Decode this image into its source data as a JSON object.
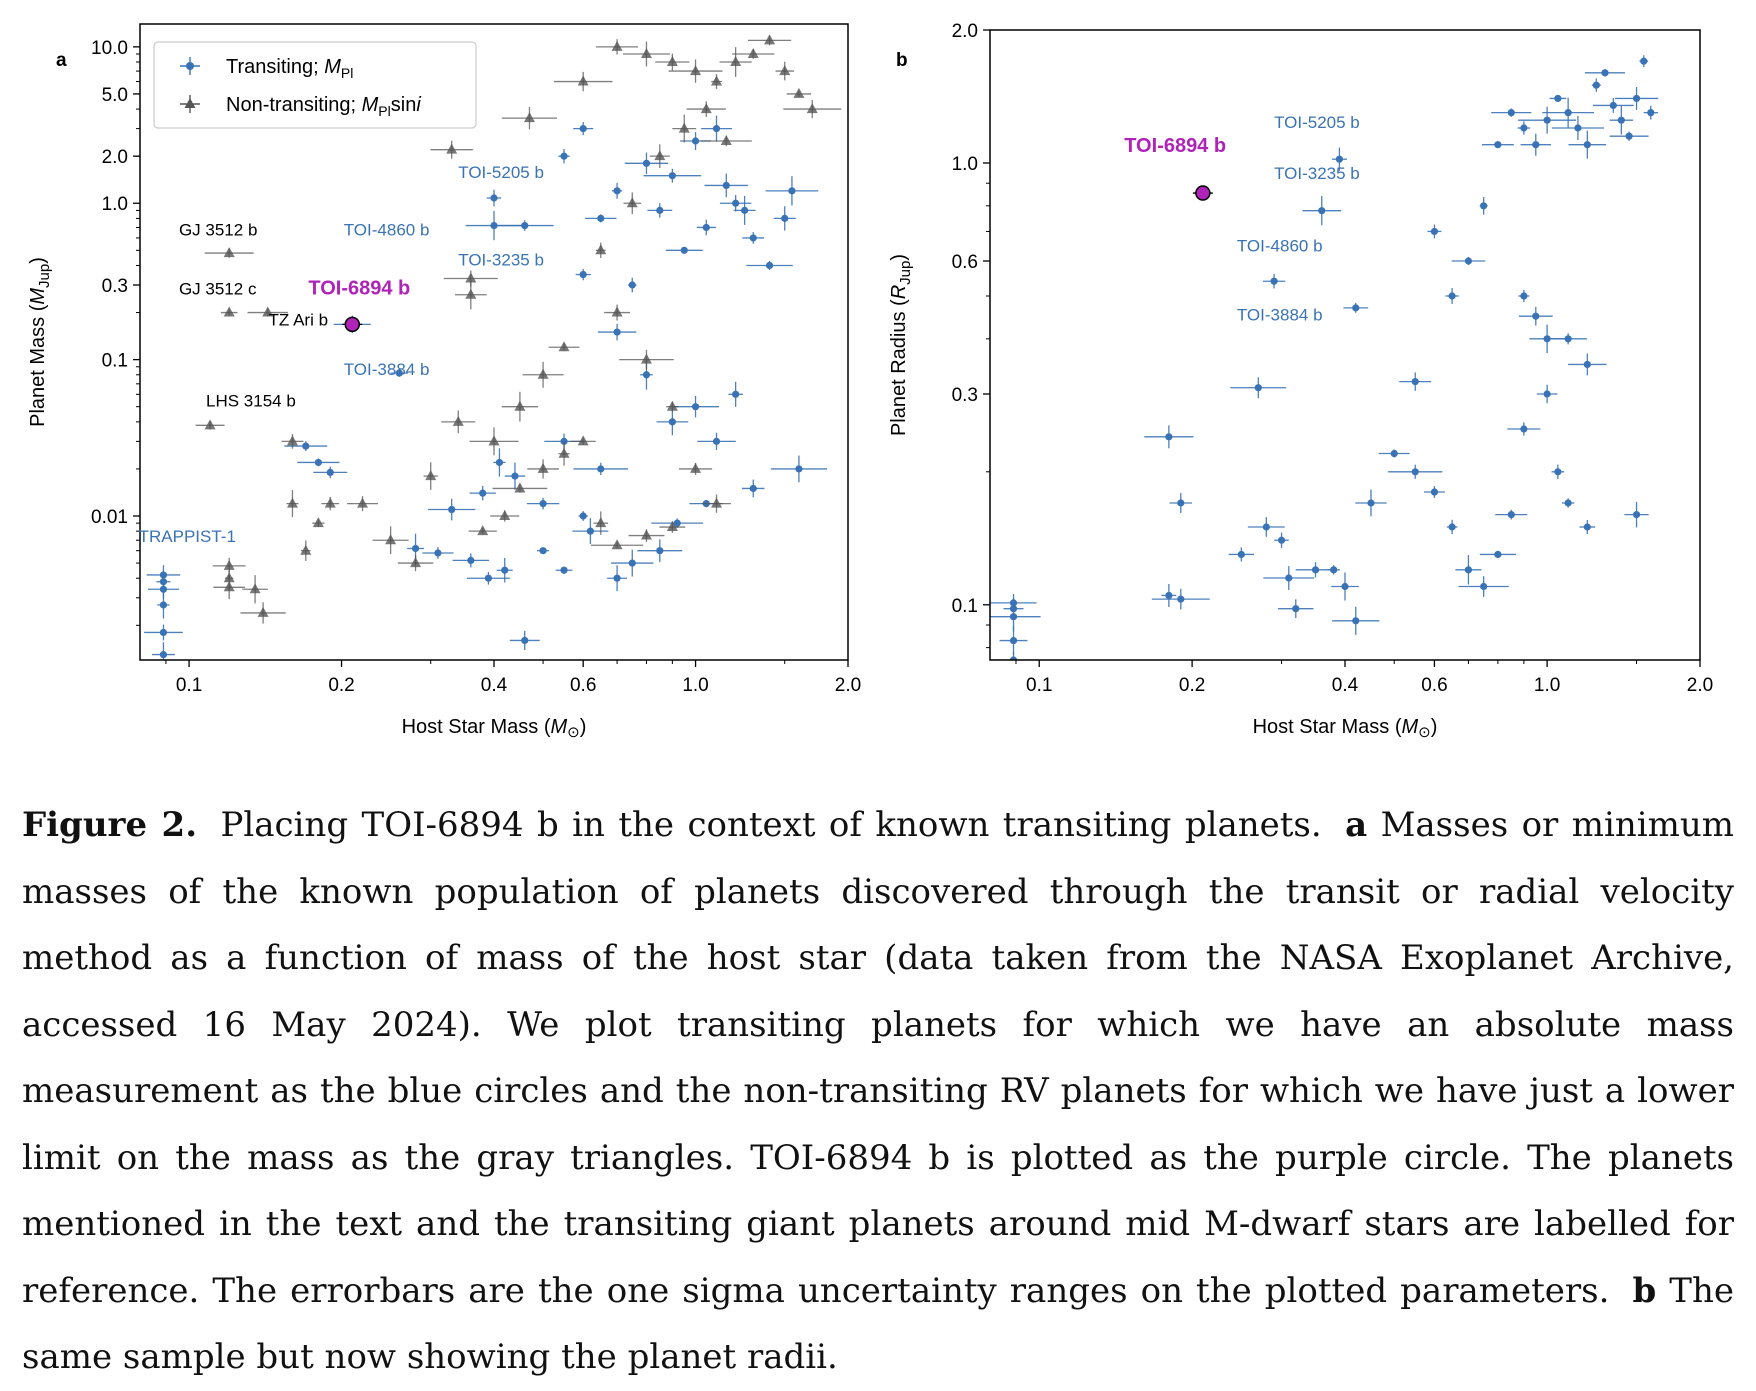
{
  "colors": {
    "transiting": "#3a73b5",
    "non_transiting": "#555555",
    "highlight": "#b023b8",
    "axis": "#000000"
  },
  "caption": {
    "label": "Figure 2.",
    "intro": "Placing TOI-6894 b in the context of known transiting planets.",
    "panel_a_marker": "a",
    "panel_a_text": "Masses or minimum masses of the known population of planets discovered through the transit or radial velocity method as a function of mass of the host star (data taken from the NASA Exoplanet Archive, accessed 16 May 2024). We plot transiting planets for which we have an absolute mass measurement as the blue circles and the non-transiting RV planets for which we have just a lower limit on the mass as the gray triangles. TOI-6894 b is plotted as the purple circle. The planets mentioned in the text and the transiting giant planets around mid M-dwarf stars are labelled for reference. The errorbars are the one sigma uncertainty ranges on the plotted parameters.",
    "panel_b_marker": "b",
    "panel_b_text": "The same sample but now showing the planet radii."
  },
  "chart_data": [
    {
      "type": "scatter",
      "panel": "a",
      "xlabel": "Host Star Mass (M⊙)",
      "ylabel": "Planet Mass (MJup)",
      "xscale": "log",
      "yscale": "log",
      "xlim": [
        0.08,
        2.0
      ],
      "ylim": [
        0.0012,
        14
      ],
      "x_ticks": [
        0.1,
        0.2,
        0.4,
        0.6,
        1.0,
        2.0
      ],
      "x_tick_labels": [
        "0.1",
        "0.2",
        "0.4",
        "0.6",
        "1.0",
        "2.0"
      ],
      "y_ticks": [
        0.01,
        0.1,
        0.3,
        1.0,
        2.0,
        5.0,
        10.0
      ],
      "y_tick_labels": [
        "0.01",
        "0.1",
        "0.3",
        "1.0",
        "2.0",
        "5.0",
        "10.0"
      ],
      "grid": false,
      "legend": {
        "position": "top-left",
        "entries": [
          {
            "series": "transiting",
            "label": "Transiting; ",
            "math": "M",
            "sub": "Pl",
            "suffix": ""
          },
          {
            "series": "non_transiting",
            "label": "Non-transiting; ",
            "math": "M",
            "sub": "Pl",
            "suffix": "sin i"
          }
        ]
      },
      "highlight": {
        "name": "TOI-6894 b",
        "x": 0.21,
        "y": 0.168
      },
      "annotations": [
        {
          "text": "GJ 3512 b",
          "x": 0.0955,
          "y": 0.62,
          "color": "black",
          "size": 17
        },
        {
          "text": "GJ 3512 c",
          "x": 0.0955,
          "y": 0.26,
          "color": "black",
          "size": 17
        },
        {
          "text": "TZ Ari b",
          "x": 0.1435,
          "y": 0.165,
          "color": "black",
          "size": 17
        },
        {
          "text": "LHS 3154 b",
          "x": 0.108,
          "y": 0.05,
          "color": "black",
          "size": 17
        },
        {
          "text": "TOI-6894 b",
          "x": 0.172,
          "y": 0.26,
          "color": "highlight",
          "size": 20,
          "bold": true
        },
        {
          "text": "TOI-3884 b",
          "x": 0.202,
          "y": 0.08,
          "color": "blue",
          "size": 17
        },
        {
          "text": "TOI-4860 b",
          "x": 0.202,
          "y": 0.62,
          "color": "blue",
          "size": 17
        },
        {
          "text": "TOI-5205 b",
          "x": 0.34,
          "y": 1.45,
          "color": "blue",
          "size": 17
        },
        {
          "text": "TOI-3235 b",
          "x": 0.34,
          "y": 0.4,
          "color": "blue",
          "size": 17
        },
        {
          "text": "TRAPPIST-1",
          "x": 0.0795,
          "y": 0.0068,
          "color": "blue",
          "size": 17
        }
      ],
      "series": [
        {
          "name": "Transiting; MPl",
          "marker": "circle",
          "points": [
            [
              0.089,
              0.0042
            ],
            [
              0.089,
              0.0038
            ],
            [
              0.089,
              0.0034
            ],
            [
              0.089,
              0.0027
            ],
            [
              0.089,
              0.0018
            ],
            [
              0.089,
              0.0013
            ],
            [
              0.18,
              0.022
            ],
            [
              0.19,
              0.019
            ],
            [
              0.17,
              0.028
            ],
            [
              0.21,
              0.168
            ],
            [
              0.26,
              0.082
            ],
            [
              0.4,
              0.72
            ],
            [
              0.4,
              1.08
            ],
            [
              0.46,
              0.72
            ],
            [
              0.46,
              0.0016
            ],
            [
              0.39,
              0.004
            ],
            [
              0.28,
              0.0062
            ],
            [
              0.31,
              0.0058
            ],
            [
              0.36,
              0.0052
            ],
            [
              0.42,
              0.0045
            ],
            [
              0.38,
              0.014
            ],
            [
              0.41,
              0.022
            ],
            [
              0.44,
              0.018
            ],
            [
              0.5,
              0.012
            ],
            [
              0.55,
              0.03
            ],
            [
              0.33,
              0.011
            ],
            [
              0.6,
              0.35
            ],
            [
              0.65,
              0.8
            ],
            [
              0.7,
              1.2
            ],
            [
              0.8,
              1.8
            ],
            [
              0.9,
              1.5
            ],
            [
              1.0,
              2.5
            ],
            [
              1.1,
              3.0
            ],
            [
              1.2,
              1.0
            ],
            [
              1.3,
              0.6
            ],
            [
              1.4,
              0.4
            ],
            [
              1.5,
              0.8
            ],
            [
              1.55,
              1.2
            ],
            [
              1.6,
              0.02
            ],
            [
              1.0,
              0.05
            ],
            [
              0.95,
              0.5
            ],
            [
              0.85,
              0.9
            ],
            [
              1.05,
              0.7
            ],
            [
              1.15,
              1.3
            ],
            [
              1.25,
              0.9
            ],
            [
              0.75,
              0.3
            ],
            [
              0.7,
              0.15
            ],
            [
              0.8,
              0.08
            ],
            [
              0.9,
              0.04
            ],
            [
              1.1,
              0.03
            ],
            [
              1.2,
              0.06
            ],
            [
              0.65,
              0.02
            ],
            [
              0.6,
              0.01
            ],
            [
              0.85,
              0.006
            ],
            [
              0.75,
              0.005
            ],
            [
              0.7,
              0.004
            ],
            [
              0.55,
              0.0045
            ],
            [
              0.5,
              0.006
            ],
            [
              0.62,
              0.008
            ],
            [
              0.92,
              0.009
            ],
            [
              1.05,
              0.012
            ],
            [
              1.3,
              0.015
            ],
            [
              0.55,
              2.0
            ],
            [
              0.6,
              3.0
            ]
          ]
        },
        {
          "name": "Non-transiting; MPl sin i",
          "marker": "triangle",
          "points": [
            [
              0.12,
              0.48
            ],
            [
              0.12,
              0.2
            ],
            [
              0.143,
              0.2
            ],
            [
              0.11,
              0.038
            ],
            [
              0.12,
              0.0048
            ],
            [
              0.12,
              0.004
            ],
            [
              0.12,
              0.0035
            ],
            [
              0.135,
              0.0034
            ],
            [
              0.14,
              0.0024
            ],
            [
              0.16,
              0.03
            ],
            [
              0.16,
              0.012
            ],
            [
              0.18,
              0.009
            ],
            [
              0.19,
              0.012
            ],
            [
              0.17,
              0.006
            ],
            [
              0.22,
              0.012
            ],
            [
              0.25,
              0.007
            ],
            [
              0.28,
              0.005
            ],
            [
              0.3,
              0.018
            ],
            [
              0.33,
              2.2
            ],
            [
              0.47,
              3.5
            ],
            [
              0.36,
              0.26
            ],
            [
              0.36,
              0.33
            ],
            [
              0.34,
              0.04
            ],
            [
              0.4,
              0.03
            ],
            [
              0.45,
              0.05
            ],
            [
              0.5,
              0.08
            ],
            [
              0.55,
              0.12
            ],
            [
              0.6,
              6
            ],
            [
              0.7,
              10
            ],
            [
              0.8,
              9
            ],
            [
              0.9,
              8
            ],
            [
              1.0,
              7
            ],
            [
              1.1,
              6
            ],
            [
              1.2,
              8
            ],
            [
              1.3,
              9
            ],
            [
              1.4,
              11
            ],
            [
              1.5,
              7
            ],
            [
              1.6,
              5
            ],
            [
              1.7,
              4
            ],
            [
              0.65,
              0.5
            ],
            [
              0.75,
              1.0
            ],
            [
              0.85,
              2.0
            ],
            [
              0.95,
              3.0
            ],
            [
              1.05,
              4.0
            ],
            [
              1.15,
              2.5
            ],
            [
              0.7,
              0.2
            ],
            [
              0.8,
              0.1
            ],
            [
              0.9,
              0.05
            ],
            [
              1.0,
              0.02
            ],
            [
              1.1,
              0.012
            ],
            [
              0.6,
              0.03
            ],
            [
              0.55,
              0.025
            ],
            [
              0.5,
              0.02
            ],
            [
              0.45,
              0.015
            ],
            [
              0.42,
              0.01
            ],
            [
              0.38,
              0.008
            ],
            [
              0.65,
              0.009
            ],
            [
              0.7,
              0.0065
            ],
            [
              0.8,
              0.0075
            ],
            [
              0.9,
              0.0085
            ]
          ]
        }
      ]
    },
    {
      "type": "scatter",
      "panel": "b",
      "xlabel": "Host Star Mass (M⊙)",
      "ylabel": "Planet Radius (RJup)",
      "xscale": "log",
      "yscale": "log",
      "xlim": [
        0.08,
        2.0
      ],
      "ylim": [
        0.075,
        2.0
      ],
      "x_ticks": [
        0.1,
        0.2,
        0.4,
        0.6,
        1.0,
        2.0
      ],
      "x_tick_labels": [
        "0.1",
        "0.2",
        "0.4",
        "0.6",
        "1.0",
        "2.0"
      ],
      "y_ticks": [
        0.1,
        0.3,
        0.6,
        1.0,
        2.0
      ],
      "y_tick_labels": [
        "0.1",
        "0.3",
        "0.6",
        "1.0",
        "2.0"
      ],
      "grid": false,
      "highlight": {
        "name": "TOI-6894 b",
        "x": 0.21,
        "y": 0.855
      },
      "annotations": [
        {
          "text": "TOI-6894 b",
          "x": 0.147,
          "y": 1.06,
          "color": "highlight",
          "size": 20,
          "bold": true
        },
        {
          "text": "TOI-5205 b",
          "x": 0.29,
          "y": 1.2,
          "color": "blue",
          "size": 17
        },
        {
          "text": "TOI-3235 b",
          "x": 0.29,
          "y": 0.92,
          "color": "blue",
          "size": 17
        },
        {
          "text": "TOI-4860 b",
          "x": 0.245,
          "y": 0.63,
          "color": "blue",
          "size": 17
        },
        {
          "text": "TOI-3884 b",
          "x": 0.245,
          "y": 0.44,
          "color": "blue",
          "size": 17
        }
      ],
      "series": [
        {
          "name": "Transiting; MPl",
          "marker": "circle",
          "points": [
            [
              0.089,
              0.101
            ],
            [
              0.089,
              0.098
            ],
            [
              0.089,
              0.094
            ],
            [
              0.089,
              0.083
            ],
            [
              0.089,
              0.075
            ],
            [
              0.21,
              0.855
            ],
            [
              0.39,
              1.02
            ],
            [
              0.36,
              0.78
            ],
            [
              0.29,
              0.54
            ],
            [
              0.42,
              0.47
            ],
            [
              0.27,
              0.31
            ],
            [
              0.18,
              0.24
            ],
            [
              0.19,
              0.17
            ],
            [
              0.18,
              0.105
            ],
            [
              0.19,
              0.103
            ],
            [
              0.25,
              0.13
            ],
            [
              0.28,
              0.15
            ],
            [
              0.3,
              0.14
            ],
            [
              0.31,
              0.115
            ],
            [
              0.32,
              0.098
            ],
            [
              0.35,
              0.12
            ],
            [
              0.38,
              0.12
            ],
            [
              0.4,
              0.11
            ],
            [
              0.42,
              0.092
            ],
            [
              0.45,
              0.17
            ],
            [
              0.5,
              0.22
            ],
            [
              0.55,
              0.2
            ],
            [
              0.6,
              0.18
            ],
            [
              0.65,
              0.15
            ],
            [
              0.7,
              0.12
            ],
            [
              0.75,
              0.11
            ],
            [
              0.8,
              0.13
            ],
            [
              0.85,
              0.16
            ],
            [
              0.9,
              0.25
            ],
            [
              1.0,
              0.3
            ],
            [
              1.1,
              0.4
            ],
            [
              1.2,
              0.35
            ],
            [
              0.7,
              0.6
            ],
            [
              0.75,
              0.8
            ],
            [
              0.8,
              1.1
            ],
            [
              0.85,
              1.3
            ],
            [
              0.9,
              1.2
            ],
            [
              0.95,
              1.1
            ],
            [
              1.0,
              1.25
            ],
            [
              1.05,
              1.4
            ],
            [
              1.1,
              1.3
            ],
            [
              1.15,
              1.2
            ],
            [
              1.2,
              1.1
            ],
            [
              1.25,
              1.5
            ],
            [
              1.3,
              1.6
            ],
            [
              1.35,
              1.35
            ],
            [
              1.4,
              1.25
            ],
            [
              1.45,
              1.15
            ],
            [
              1.5,
              1.4
            ],
            [
              1.55,
              1.7
            ],
            [
              1.6,
              1.3
            ],
            [
              0.9,
              0.5
            ],
            [
              0.95,
              0.45
            ],
            [
              1.0,
              0.4
            ],
            [
              1.05,
              0.2
            ],
            [
              1.1,
              0.17
            ],
            [
              1.2,
              0.15
            ],
            [
              0.6,
              0.7
            ],
            [
              0.65,
              0.5
            ],
            [
              1.5,
              0.16
            ],
            [
              0.55,
              0.32
            ]
          ]
        }
      ]
    }
  ]
}
